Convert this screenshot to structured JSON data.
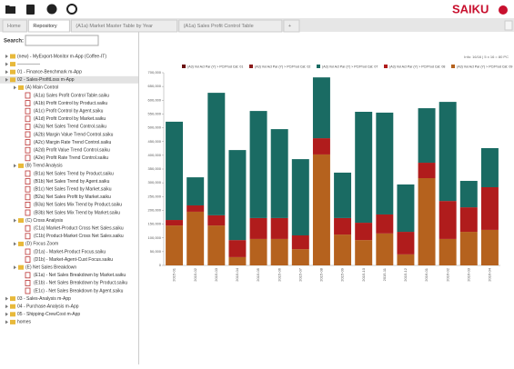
{
  "toolbar": {
    "logo": "SAIKU"
  },
  "tabs": [
    "Home",
    "Repository",
    "(A1a) Market Master Table by Year",
    "(A1a) Sales Profit Control Table",
    "+"
  ],
  "search": {
    "label": "Search:"
  },
  "repository": [
    {
      "label": "(new) - MyExport-Monitor m-App (Coffee-IT)",
      "children": []
    },
    {
      "label": "—————",
      "children": []
    },
    {
      "label": "01 - Finance-Benchmark m-App",
      "children": []
    },
    {
      "label": "02 - Sales-ProfitLoss m-App",
      "children": [
        {
          "label": "(A) Main Control",
          "children": [
            {
              "label": "(A1a) Sales Profit Control Table.saiku"
            },
            {
              "label": "(A1b) Profit Control by Product.saiku"
            },
            {
              "label": "(A1c) Profit Control by Agent.saiku"
            },
            {
              "label": "(A1d) Profit Control by Market.saiku"
            },
            {
              "label": "(A2a) Net Sales Trend Control.saiku"
            },
            {
              "label": "(A2b) Margin Value Trend Control.saiku"
            },
            {
              "label": "(A2c) Margin Rate Trend Control.saiku"
            },
            {
              "label": "(A2d) Profit Value Trend Control.saiku"
            },
            {
              "label": "(A2e) Profit Rate Trend Control.saiku"
            }
          ]
        },
        {
          "label": "(B) Trend Analysis",
          "children": [
            {
              "label": "(B1a) Net Sales Trend by Product.saiku"
            },
            {
              "label": "(B1b) Net Sales Trend by Agent.saiku"
            },
            {
              "label": "(B1c) Net Sales Trend by Market.saiku"
            },
            {
              "label": "(B2a) Net Sales Profit by Market.saiku"
            },
            {
              "label": "(B3a) Net Sales Mix Trend by Product.saiku"
            },
            {
              "label": "(B3b) Net Sales Mix Trend by Market.saiku"
            }
          ]
        },
        {
          "label": "(C) Cross Analysis",
          "children": [
            {
              "label": "(C1a) Market-Product Cross Net Sales.saiku"
            },
            {
              "label": "(C1b) Product-Market Cross Net Sales.saiku"
            }
          ]
        },
        {
          "label": "(D) Focus Zoom",
          "children": [
            {
              "label": "(D1a) - Market-Product Focus.saiku"
            },
            {
              "label": "(D1b) - Market-Agent-Cust Focus.saiku"
            }
          ]
        },
        {
          "label": "(E) Net Sales Breakdown",
          "children": [
            {
              "label": "(E1a) - Net Sales Breakdown by Market.saiku"
            },
            {
              "label": "(E1b) - Net Sales Breakdown by Product.saiku"
            },
            {
              "label": "(E1c) - Net Sales Breakdown by Agent.saiku"
            }
          ]
        }
      ]
    },
    {
      "label": "03 - Sales-Analysis m-App",
      "children": []
    },
    {
      "label": "04 - Purchase-Analysis m-App",
      "children": []
    },
    {
      "label": "05 - Shipping-CrewCost m-App",
      "children": []
    },
    {
      "label": "homes",
      "children": []
    }
  ],
  "info": "Info: 16/16 | 5 x 16 = 80 PC",
  "chart_data": {
    "type": "bar",
    "stacked": true,
    "categories": [
      "2015-01",
      "2015-02",
      "2015-03",
      "2015-04",
      "2015-05",
      "2015-06",
      "2015-07",
      "2015-08",
      "2015-09",
      "2015-10",
      "2015-11",
      "2015-12",
      "2016-01",
      "2016-02",
      "2016-03",
      "2016-04"
    ],
    "series": [
      {
        "name": "(A3) Vol Act Par (Y) > PC/Prod Cat: 01",
        "color": "#6b1010",
        "values": [
          0,
          0,
          0,
          0,
          0,
          0,
          0,
          0,
          0,
          0,
          0,
          0,
          0,
          0,
          0,
          0
        ]
      },
      {
        "name": "(A3) Vol Act Par (Y) > PC/Prod Cat: 02",
        "color": "#8c1c1c",
        "values": [
          0,
          0,
          0,
          0,
          0,
          0,
          0,
          0,
          0,
          0,
          0,
          0,
          0,
          0,
          0,
          0
        ]
      },
      {
        "name": "(A3) Vol Act Par (Y) > PC/Prod Cat: 07",
        "color": "#1a6b63",
        "values": [
          357,
          102,
          445,
          327,
          389,
          323,
          277,
          221,
          165,
          403,
          370,
          172,
          198,
          360,
          96,
          142
        ]
      },
      {
        "name": "(A3) Vol Act Par (Y) > PC/Prod Cat: 08",
        "color": "#b01c1c",
        "values": [
          20,
          23,
          37,
          62,
          76,
          76,
          50,
          59,
          60,
          63,
          69,
          82,
          56,
          138,
          89,
          155
        ]
      },
      {
        "name": "(A3) Vol Act Par (Y) > PC/Prod Cat: 09",
        "color": "#b5621e",
        "values": [
          145,
          195,
          145,
          30,
          96,
          96,
          59,
          403,
          112,
          92,
          116,
          40,
          317,
          96,
          122,
          129
        ]
      }
    ],
    "ylim": [
      0,
      700
    ],
    "yticks": [
      0,
      {
        "value": 50,
        "label": "50,000"
      },
      {
        "value": 100,
        "label": "100,000"
      },
      {
        "value": 150,
        "label": "150,000"
      },
      {
        "value": 200,
        "label": "200,000"
      },
      {
        "value": 250,
        "label": "250,000"
      },
      {
        "value": 300,
        "label": "300,000"
      },
      {
        "value": 350,
        "label": "350,000"
      },
      {
        "value": 400,
        "label": "400,000"
      },
      {
        "value": 450,
        "label": "450,000"
      },
      {
        "value": 500,
        "label": "500,000"
      },
      {
        "value": 550,
        "label": "550,000"
      },
      {
        "value": 600,
        "label": "600,000"
      },
      {
        "value": 650,
        "label": "650,000"
      },
      {
        "value": 700,
        "label": "700,000"
      }
    ],
    "grid": false
  }
}
